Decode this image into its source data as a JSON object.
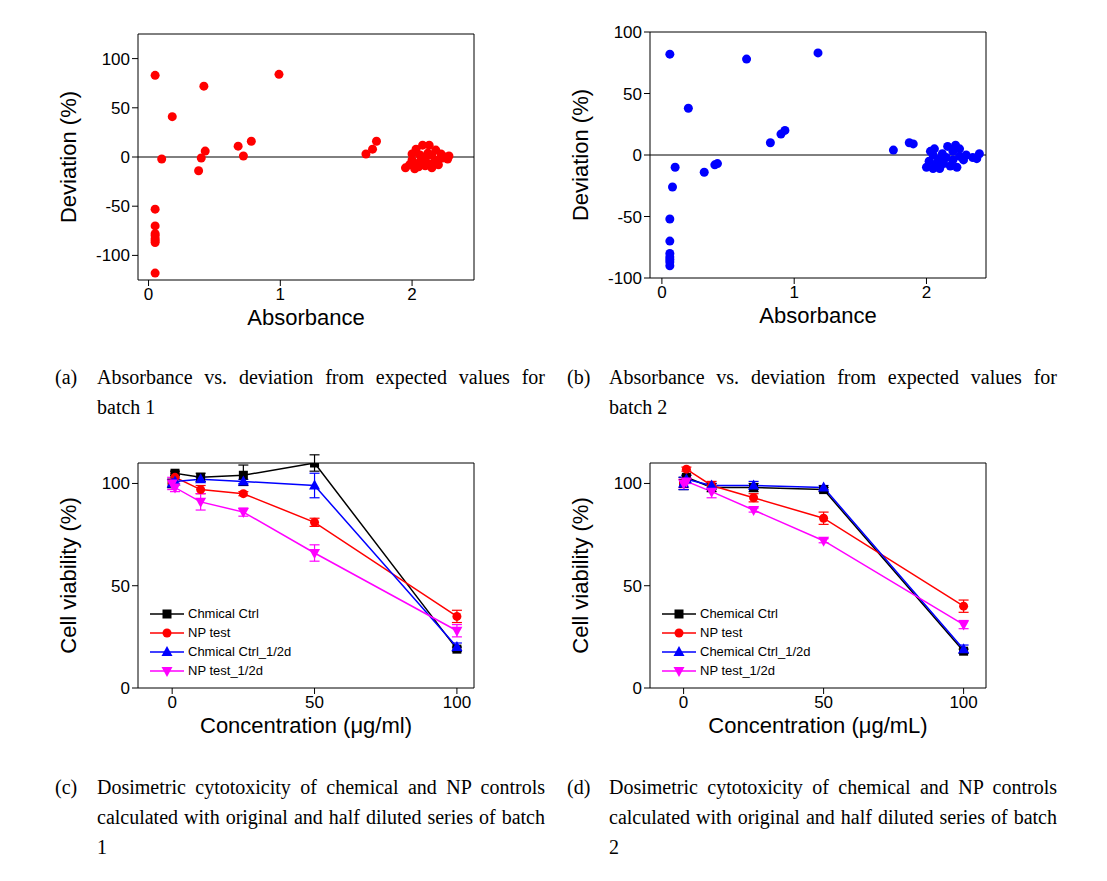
{
  "chart_data": [
    {
      "type": "scatter",
      "caption_label": "(a)",
      "caption": "Absorbance vs. deviation from expected values for batch 1",
      "xlabel": "Absorbance",
      "ylabel": "Deviation (%)",
      "xlim": [
        -0.08,
        2.47
      ],
      "xticks": [
        0,
        1,
        2
      ],
      "ylim": [
        -125,
        125
      ],
      "yticks": [
        -100,
        -50,
        0,
        50,
        100
      ],
      "color": "#ff0000",
      "marker": "circle",
      "baseline": 0,
      "x": [
        0.05,
        0.05,
        0.05,
        0.05,
        0.05,
        0.05,
        0.05,
        0.05,
        0.05,
        0.1,
        0.18,
        0.38,
        0.4,
        0.42,
        0.43,
        0.68,
        0.72,
        0.78,
        0.99,
        1.65,
        1.7,
        1.73,
        1.95,
        1.98,
        2.0,
        2.0,
        2.02,
        2.03,
        2.05,
        2.05,
        2.07,
        2.08,
        2.08,
        2.1,
        2.1,
        2.12,
        2.13,
        2.13,
        2.15,
        2.15,
        2.17,
        2.18,
        2.2,
        2.2,
        2.22,
        2.23,
        2.25,
        2.27,
        2.28,
        2.0,
        2.04,
        2.06
      ],
      "y": [
        83,
        -53,
        -70,
        -78,
        -80,
        -83,
        -85,
        -87,
        -118,
        -2,
        41,
        -14,
        -1,
        72,
        6,
        11,
        1,
        16,
        84,
        3,
        8,
        16,
        -11,
        -8,
        -3,
        3,
        -12,
        8,
        -6,
        -10,
        0,
        -4,
        12,
        -9,
        -2,
        4,
        12,
        -7,
        -11,
        2,
        -5,
        7,
        -3,
        -8,
        3,
        -1,
        0,
        -2,
        1,
        -6,
        -9,
        2
      ]
    },
    {
      "type": "scatter",
      "caption_label": "(b)",
      "caption": "Absorbance vs. deviation from expected values for batch 2",
      "xlabel": "Absorbance",
      "ylabel": "Deviation (%)",
      "xlim": [
        -0.09,
        2.45
      ],
      "xticks": [
        0,
        1,
        2
      ],
      "ylim": [
        -100,
        100
      ],
      "yticks": [
        -100,
        -50,
        0,
        50,
        100
      ],
      "color": "#0000ff",
      "marker": "circle",
      "baseline": 0,
      "x": [
        0.06,
        0.06,
        0.06,
        0.06,
        0.06,
        0.06,
        0.06,
        0.06,
        0.08,
        0.1,
        0.2,
        0.32,
        0.4,
        0.42,
        0.64,
        0.82,
        0.9,
        0.93,
        1.18,
        1.75,
        1.87,
        1.9,
        2.0,
        2.02,
        2.03,
        2.05,
        2.06,
        2.07,
        2.1,
        2.1,
        2.12,
        2.13,
        2.15,
        2.16,
        2.18,
        2.2,
        2.2,
        2.22,
        2.23,
        2.25,
        2.25,
        2.28,
        2.3,
        2.35,
        2.38,
        2.4,
        2.05,
        2.08
      ],
      "y": [
        82,
        -52,
        -70,
        -80,
        -83,
        -85,
        -87,
        -90,
        -26,
        -10,
        38,
        -14,
        -8,
        -7,
        78,
        10,
        17,
        20,
        83,
        4,
        10,
        9,
        -10,
        -5,
        3,
        -11,
        5,
        -8,
        -3,
        -11,
        1,
        -7,
        -2,
        7,
        -9,
        -4,
        3,
        8,
        -10,
        5,
        -1,
        -4,
        0,
        -2,
        -3,
        1,
        0,
        -6
      ]
    },
    {
      "type": "line",
      "caption_label": "(c)",
      "caption": "Dosimetric cytotoxicity of chemical and NP controls calculated with original and half diluted series of batch 1",
      "xlabel": "Concentration (μg/ml)",
      "ylabel": "Cell viability (%)",
      "xlim": [
        -12,
        106
      ],
      "xticks": [
        0,
        50,
        100
      ],
      "ylim": [
        0,
        110
      ],
      "yticks": [
        0,
        50,
        100
      ],
      "legend": "lower left",
      "x": [
        0,
        1,
        10,
        25,
        50,
        100
      ],
      "series": [
        {
          "name": "Chmical Ctrl",
          "color": "#000000",
          "marker": "square",
          "values": [
            100,
            105,
            103,
            104,
            110,
            19
          ],
          "errors": [
            2,
            1,
            2,
            5,
            4,
            1
          ]
        },
        {
          "name": "NP test",
          "color": "#ff0000",
          "marker": "circle",
          "values": [
            100,
            103,
            97,
            95,
            81,
            35
          ],
          "errors": [
            2,
            2,
            2,
            1,
            2,
            3
          ]
        },
        {
          "name": "Chmical Ctrl_1/2d",
          "color": "#0000ff",
          "marker": "triangle",
          "values": [
            100,
            101,
            102,
            101,
            99,
            20
          ],
          "errors": [
            2,
            1,
            1,
            1,
            6,
            2
          ]
        },
        {
          "name": "NP test_1/2d",
          "color": "#ff00ff",
          "marker": "triangle-down",
          "values": [
            100,
            98,
            91,
            86,
            66,
            28
          ],
          "errors": [
            3,
            2,
            4,
            2,
            4,
            3
          ]
        }
      ]
    },
    {
      "type": "line",
      "caption_label": "(d)",
      "caption": "Dosimetric cytotoxicity of chemical and NP controls calculated with original and half diluted series of batch 2",
      "xlabel": "Concentration (μg/mL)",
      "ylabel": "Cell viability (%)",
      "xlim": [
        -12,
        108
      ],
      "xticks": [
        0,
        50,
        100
      ],
      "ylim": [
        0,
        110
      ],
      "yticks": [
        0,
        50,
        100
      ],
      "legend": "lower left",
      "x": [
        0,
        1,
        10,
        25,
        50,
        100
      ],
      "series": [
        {
          "name": "Chemical Ctrl",
          "color": "#000000",
          "marker": "square",
          "values": [
            100,
            103,
            98,
            98,
            97,
            18
          ],
          "errors": [
            3,
            1,
            2,
            2,
            1,
            1
          ]
        },
        {
          "name": "NP test",
          "color": "#ff0000",
          "marker": "circle",
          "values": [
            100,
            107,
            99,
            93,
            83,
            40
          ],
          "errors": [
            2,
            1,
            2,
            2,
            3,
            3
          ]
        },
        {
          "name": "Chemical Ctrl_1/2d",
          "color": "#0000ff",
          "marker": "triangle",
          "values": [
            100,
            102,
            99,
            99,
            98,
            19
          ],
          "errors": [
            3,
            2,
            1,
            2,
            1,
            2
          ]
        },
        {
          "name": "NP test_1/2d",
          "color": "#ff00ff",
          "marker": "triangle-down",
          "values": [
            100,
            101,
            96,
            87,
            72,
            31
          ],
          "errors": [
            2,
            1,
            3,
            1,
            1,
            2
          ]
        }
      ]
    }
  ]
}
